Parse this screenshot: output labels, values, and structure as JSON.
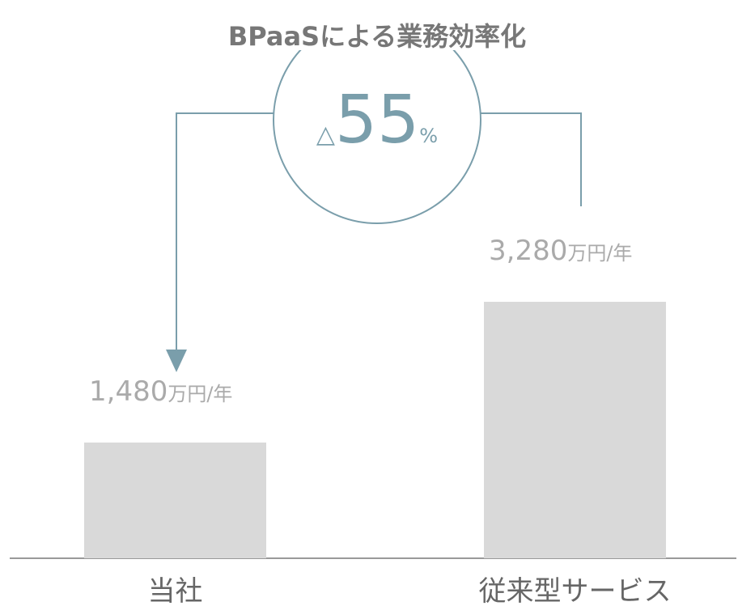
{
  "chart_data": {
    "type": "bar",
    "title": "BPaaSによる業務効率化",
    "categories": [
      "当社",
      "従来型サービス"
    ],
    "values": [
      1480,
      3280
    ],
    "value_labels": [
      "1,480",
      "3,280"
    ],
    "unit": "万円/年",
    "color": "#d9d9d9",
    "annotation": {
      "prefix": "△",
      "value": 55,
      "suffix": "%"
    }
  }
}
